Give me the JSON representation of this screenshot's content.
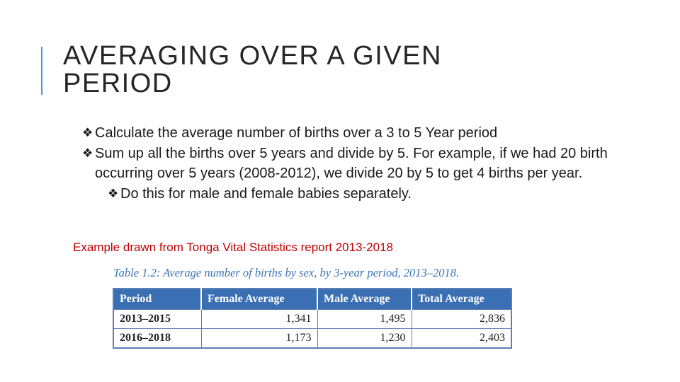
{
  "slide": {
    "title_line1": "AVERAGING OVER A GIVEN",
    "title_line2": "PERIOD",
    "accent_color": "#4a9bd1"
  },
  "bullets": [
    {
      "marker": "❖",
      "text": "Calculate the average number of births over a 3 to 5 Year period"
    },
    {
      "marker": "❖",
      "text": "Sum up all the births over 5 years and divide by 5.  For example, if we had 20 birth occurring over 5 years (2008-2012), we divide 20 by 5 to get 4 births per year."
    },
    {
      "marker": "❖",
      "text": "Do this for male and female babies separately."
    }
  ],
  "source_note": {
    "text": "Example drawn from Tonga Vital Statistics report 2013-2018",
    "color": "#c00000"
  },
  "table": {
    "caption": "Table 1.2: Average number of births by sex, by 3-year period, 2013–2018.",
    "headers": [
      "Period",
      "Female Average",
      "Male Average",
      "Total Average"
    ],
    "rows": [
      [
        "2013–2015",
        "1,341",
        "1,495",
        "2,836"
      ],
      [
        "2016–2018",
        "1,173",
        "1,230",
        "2,403"
      ]
    ],
    "header_color": "#3a6fb3"
  }
}
